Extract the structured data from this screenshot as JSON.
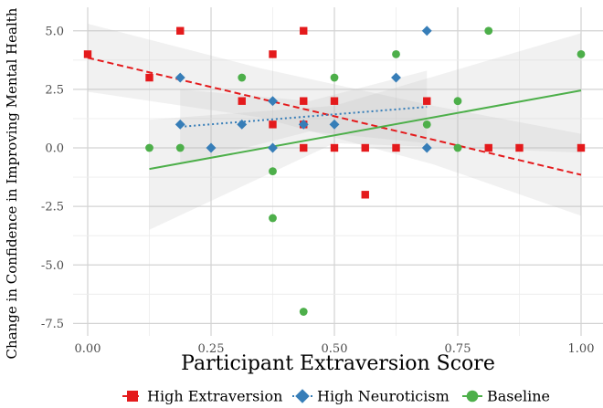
{
  "chart_data": {
    "type": "scatter",
    "title": "",
    "xlabel": "Participant Extraversion Score",
    "ylabel": "Change in Confidence in Improving Mental Health",
    "xlim": [
      -0.03,
      1.05
    ],
    "ylim": [
      -7.5,
      6.1
    ],
    "x_ticks": [
      0,
      0.25,
      0.5,
      0.75,
      1.0
    ],
    "x_tick_labels": [
      "0.00",
      "0.25",
      "0.50",
      "0.75",
      "1.00"
    ],
    "y_ticks": [
      5,
      2.5,
      0,
      -2.5,
      -5,
      -7.5
    ],
    "y_tick_labels": [
      "5.0",
      "2.5",
      "0.0",
      "-2.5",
      "-5.0",
      "-7.5"
    ],
    "grid": true,
    "legend_position": "bottom",
    "series": [
      {
        "name": "High Extraversion",
        "color": "#e41a1c",
        "marker": "square",
        "line_style": "dashed",
        "points": [
          [
            0,
            4
          ],
          [
            0.125,
            3
          ],
          [
            0.1875,
            5
          ],
          [
            0.3125,
            2
          ],
          [
            0.375,
            4
          ],
          [
            0.375,
            1
          ],
          [
            0.4375,
            5
          ],
          [
            0.4375,
            2
          ],
          [
            0.4375,
            1
          ],
          [
            0.4375,
            0
          ],
          [
            0.5,
            2
          ],
          [
            0.5,
            0
          ],
          [
            0.5625,
            0
          ],
          [
            0.5625,
            -2
          ],
          [
            0.625,
            0
          ],
          [
            0.6875,
            2
          ],
          [
            0.8125,
            0
          ],
          [
            0.875,
            0
          ],
          [
            1.0,
            0
          ]
        ],
        "fit": {
          "x": [
            0,
            1.0
          ],
          "y": [
            3.85,
            -1.15
          ]
        },
        "band": {
          "x": [
            0,
            0.35,
            0.7,
            1.0
          ],
          "upper": [
            5.3,
            3.4,
            1.8,
            0.6
          ],
          "lower": [
            2.4,
            1.3,
            -0.7,
            -2.9
          ]
        }
      },
      {
        "name": "High Neuroticism",
        "color": "#377eb8",
        "marker": "diamond",
        "line_style": "dotted",
        "points": [
          [
            0.1875,
            3
          ],
          [
            0.1875,
            1
          ],
          [
            0.25,
            0
          ],
          [
            0.3125,
            1
          ],
          [
            0.375,
            2
          ],
          [
            0.375,
            0
          ],
          [
            0.4375,
            1
          ],
          [
            0.5,
            1
          ],
          [
            0.625,
            3
          ],
          [
            0.6875,
            5
          ],
          [
            0.6875,
            0
          ]
        ],
        "fit": {
          "x": [
            0.1875,
            0.6875
          ],
          "y": [
            0.9,
            1.75
          ]
        },
        "band": {
          "x": [
            0.1875,
            0.45,
            0.6875
          ],
          "upper": [
            2.5,
            2.0,
            3.3
          ],
          "lower": [
            -0.7,
            0.7,
            0.2
          ]
        }
      },
      {
        "name": "Baseline",
        "color": "#4daf4a",
        "marker": "circle",
        "line_style": "solid",
        "points": [
          [
            0.125,
            0
          ],
          [
            0.1875,
            0
          ],
          [
            0.3125,
            3
          ],
          [
            0.375,
            -1
          ],
          [
            0.375,
            -3
          ],
          [
            0.4375,
            -7
          ],
          [
            0.5,
            3
          ],
          [
            0.625,
            4
          ],
          [
            0.6875,
            1
          ],
          [
            0.75,
            2
          ],
          [
            0.75,
            0
          ],
          [
            0.8125,
            5
          ],
          [
            1.0,
            4
          ]
        ],
        "fit": {
          "x": [
            0.125,
            1.0
          ],
          "y": [
            -0.9,
            2.45
          ]
        },
        "band": {
          "x": [
            0.125,
            0.5,
            1.0
          ],
          "upper": [
            1.2,
            1.8,
            4.9
          ],
          "lower": [
            -3.5,
            0.2,
            -0.2
          ]
        }
      }
    ]
  }
}
